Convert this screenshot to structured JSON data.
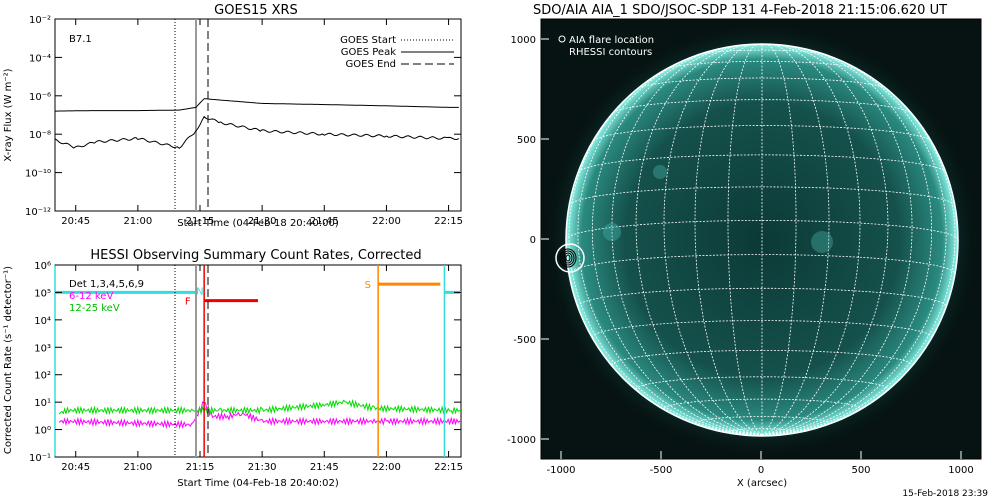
{
  "goes": {
    "title": "GOES15 XRS",
    "class_label": "B7.1",
    "xlabel": "Start Time (04-Feb-18 20:40:00)",
    "ylabel": "X-ray Flux (W m⁻²)",
    "legend": [
      "GOES Start",
      "GOES Peak",
      "GOES End"
    ],
    "x_ticks": [
      "20:45",
      "21:00",
      "21:15",
      "21:30",
      "21:45",
      "22:00",
      "22:15"
    ],
    "y_ticks": [
      "10⁻²",
      "10⁻⁴",
      "10⁻⁶",
      "10⁻⁸",
      "10⁻¹⁰",
      "10⁻¹²"
    ]
  },
  "hessi": {
    "title": "HESSI Observing Summary Count Rates, Corrected",
    "xlabel": "Start Time (04-Feb-18 20:40:02)",
    "ylabel": "Corrected Count Rate (s⁻¹ detector⁻¹)",
    "legend": [
      {
        "label": "Det 1,3,4,5,6,9",
        "color": "#000000"
      },
      {
        "label": "6-12 keV",
        "color": "#ff00ff"
      },
      {
        "label": "12-25 keV",
        "color": "#00dd00"
      }
    ],
    "flags": {
      "F": "F",
      "N": "N",
      "S": "S"
    },
    "x_ticks": [
      "20:45",
      "21:00",
      "21:15",
      "21:30",
      "21:45",
      "22:00",
      "22:15"
    ],
    "y_ticks": [
      "10⁶",
      "10⁵",
      "10⁴",
      "10³",
      "10²",
      "10¹",
      "10⁰",
      "10⁻¹"
    ]
  },
  "aia": {
    "title": "SDO/AIA AIA_1 SDO/JSOC-SDP 131  4-Feb-2018 21:15:06.620 UT",
    "legend_flare": "AIA flare location",
    "legend_rhessi": "RHESSI contours",
    "xlabel": "X (arcsec)",
    "x_ticks": [
      "-1000",
      "-500",
      "0",
      "500",
      "1000"
    ],
    "y_ticks": [
      "1000",
      "500",
      "0",
      "-500",
      "-1000"
    ]
  },
  "footer_timestamp": "15-Feb-2018 23:39",
  "chart_data": [
    {
      "type": "line",
      "title": "GOES15 XRS",
      "xlabel": "Start Time (04-Feb-18 20:40:00)",
      "ylabel": "X-ray Flux (W m^-2)",
      "x_unit": "UT time 04-Feb-2018",
      "ylim": [
        1e-12,
        0.01
      ],
      "y_scale": "log",
      "x_range": [
        "20:40",
        "22:18"
      ],
      "markers": {
        "goes_start": "21:10",
        "goes_peak": "21:15",
        "goes_end": "21:18"
      },
      "series": [
        {
          "name": "long",
          "x": [
            "20:40",
            "20:50",
            "21:00",
            "21:10",
            "21:14",
            "21:16",
            "21:20",
            "21:30",
            "21:45",
            "22:00",
            "22:15",
            "22:18"
          ],
          "values": [
            1.6e-07,
            1.7e-07,
            1.7e-07,
            1.8e-07,
            2.5e-07,
            7.1e-07,
            6e-07,
            4e-07,
            3.5e-07,
            3e-07,
            2.5e-07,
            2.5e-07
          ]
        },
        {
          "name": "short",
          "x": [
            "20:40",
            "20:45",
            "20:50",
            "21:00",
            "21:10",
            "21:14",
            "21:16",
            "21:20",
            "21:30",
            "21:45",
            "22:00",
            "22:15",
            "22:18"
          ],
          "values": [
            5e-09,
            2e-09,
            4e-09,
            6e-09,
            2e-09,
            1.5e-08,
            8e-08,
            4e-08,
            1.5e-08,
            1e-08,
            8e-09,
            6e-09,
            6e-09
          ]
        }
      ]
    },
    {
      "type": "line",
      "title": "HESSI Observing Summary Count Rates, Corrected",
      "xlabel": "Start Time (04-Feb-18 20:40:02)",
      "ylabel": "Corrected Count Rate (s^-1 detector^-1)",
      "x_unit": "UT time 04-Feb-2018",
      "ylim": [
        0.1,
        1000000.0
      ],
      "y_scale": "log",
      "x_range": [
        "20:40",
        "22:18"
      ],
      "series": [
        {
          "name": "6-12 keV",
          "x": [
            "20:41",
            "20:43",
            "21:13",
            "21:16",
            "21:18",
            "21:22",
            "21:25",
            "21:30",
            "21:45",
            "22:00",
            "21:57",
            "22:16",
            "22:18"
          ],
          "values": [
            2,
            2,
            1.5,
            10,
            3,
            3,
            4,
            2,
            2,
            2,
            2,
            2,
            2
          ]
        },
        {
          "name": "12-25 keV",
          "x": [
            "20:41",
            "20:43",
            "21:13",
            "21:16",
            "21:20",
            "21:30",
            "21:45",
            "21:50",
            "21:57",
            "22:16",
            "22:18"
          ],
          "values": [
            4,
            5,
            5,
            5,
            5,
            5,
            8,
            10,
            6,
            5,
            5
          ]
        }
      ],
      "flags": [
        {
          "label": "N",
          "x": [
            "20:40",
            "21:14"
          ],
          "y": 100000.0
        },
        {
          "label": "F",
          "x": [
            "21:16",
            "21:29"
          ],
          "y": 50000.0
        },
        {
          "label": "S",
          "x": [
            "21:58",
            "22:13"
          ],
          "y": 200000.0
        },
        {
          "label": "N",
          "x": [
            "22:14",
            "22:18"
          ],
          "y": 100000.0
        }
      ]
    }
  ]
}
